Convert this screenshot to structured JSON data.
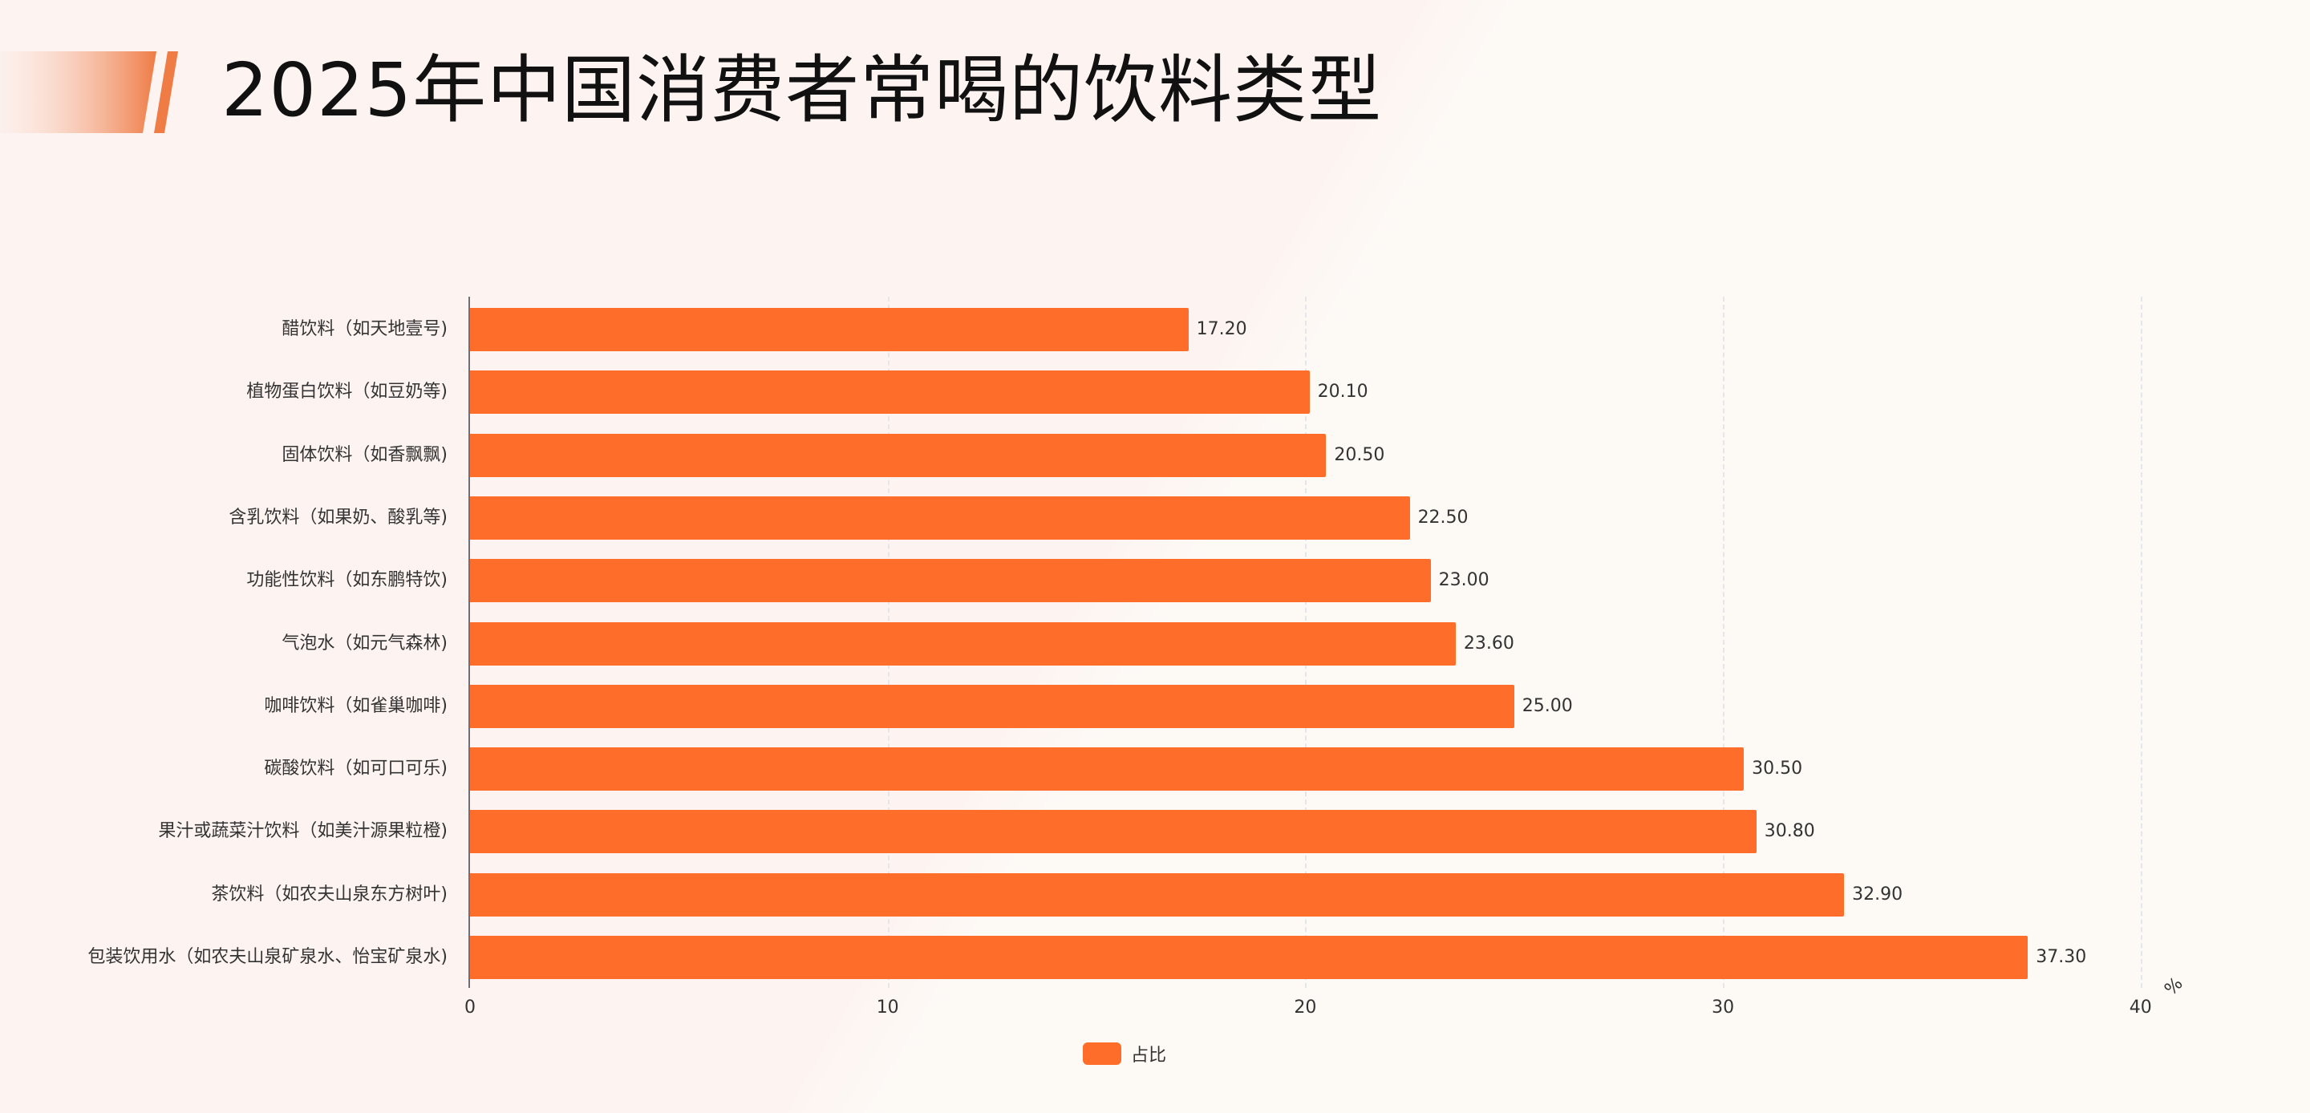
{
  "title": "2025年中国消费者常喝的饮料类型",
  "colors": {
    "bar": "#ff6d2b",
    "accent_deco": "#ef7b45",
    "axis": "#6e7079",
    "grid": "#e4e6ec",
    "text": "#333333"
  },
  "axis": {
    "x_ticks": [
      "0",
      "10",
      "20",
      "30",
      "40"
    ],
    "unit": "%"
  },
  "legend": {
    "items": [
      {
        "label": "占比",
        "color": "#ff6d2b"
      }
    ]
  },
  "bars": [
    {
      "label": "醋饮料（如天地壹号)",
      "value": 17.2,
      "value_text": "17.20"
    },
    {
      "label": "植物蛋白饮料（如豆奶等)",
      "value": 20.1,
      "value_text": "20.10"
    },
    {
      "label": "固体饮料（如香飘飘)",
      "value": 20.5,
      "value_text": "20.50"
    },
    {
      "label": "含乳饮料（如果奶、酸乳等)",
      "value": 22.5,
      "value_text": "22.50"
    },
    {
      "label": "功能性饮料（如东鹏特饮)",
      "value": 23.0,
      "value_text": "23.00"
    },
    {
      "label": "气泡水（如元气森林)",
      "value": 23.6,
      "value_text": "23.60"
    },
    {
      "label": "咖啡饮料（如雀巢咖啡)",
      "value": 25.0,
      "value_text": "25.00"
    },
    {
      "label": "碳酸饮料（如可口可乐)",
      "value": 30.5,
      "value_text": "30.50"
    },
    {
      "label": "果汁或蔬菜汁饮料（如美汁源果粒橙)",
      "value": 30.8,
      "value_text": "30.80"
    },
    {
      "label": "茶饮料（如农夫山泉东方树叶)",
      "value": 32.9,
      "value_text": "32.90"
    },
    {
      "label": "包装饮用水（如农夫山泉矿泉水、怡宝矿泉水)",
      "value": 37.3,
      "value_text": "37.30"
    }
  ],
  "chart_data": {
    "type": "bar",
    "orientation": "horizontal",
    "title": "2025年中国消费者常喝的饮料类型",
    "categories": [
      "醋饮料（如天地壹号)",
      "植物蛋白饮料（如豆奶等)",
      "固体饮料（如香飘飘)",
      "含乳饮料（如果奶、酸乳等)",
      "功能性饮料（如东鹏特饮)",
      "气泡水（如元气森林)",
      "咖啡饮料（如雀巢咖啡)",
      "碳酸饮料（如可口可乐)",
      "果汁或蔬菜汁饮料（如美汁源果粒橙)",
      "茶饮料（如农夫山泉东方树叶)",
      "包装饮用水（如农夫山泉矿泉水、怡宝矿泉水)"
    ],
    "series": [
      {
        "name": "占比",
        "values": [
          17.2,
          20.1,
          20.5,
          22.5,
          23.0,
          23.6,
          25.0,
          30.5,
          30.8,
          32.9,
          37.3
        ]
      }
    ],
    "xlabel": "%",
    "ylabel": "",
    "xlim": [
      0,
      40
    ],
    "x_ticks": [
      0,
      10,
      20,
      30,
      40
    ],
    "grid": "vertical dashed",
    "legend_position": "bottom-center",
    "data_labels": true
  }
}
